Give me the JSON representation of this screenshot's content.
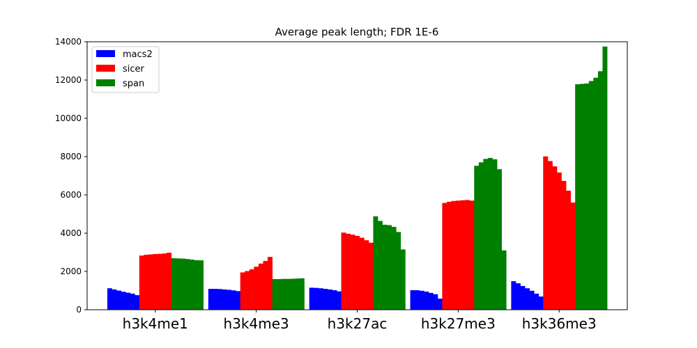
{
  "chart_data": {
    "type": "bar",
    "title": "Average peak length; FDR 1E-6",
    "xlabel": "",
    "ylabel": "",
    "ylim": [
      0,
      14000
    ],
    "yticks": [
      0,
      2000,
      4000,
      6000,
      8000,
      10000,
      12000,
      14000
    ],
    "grid": false,
    "legend_position": "top-left",
    "categories": [
      "h3k4me1",
      "h3k4me3",
      "h3k27ac",
      "h3k27me3",
      "h3k36me3"
    ],
    "series": [
      {
        "name": "macs2",
        "color": "#0000ff",
        "values": [
          [
            1120,
            1060,
            1000,
            940,
            890,
            840,
            760
          ],
          [
            1090,
            1090,
            1080,
            1060,
            1040,
            1010,
            970
          ],
          [
            1150,
            1140,
            1120,
            1090,
            1060,
            1020,
            960
          ],
          [
            1020,
            1020,
            990,
            950,
            880,
            810,
            580
          ],
          [
            1490,
            1380,
            1240,
            1120,
            990,
            840,
            690
          ]
        ]
      },
      {
        "name": "sicer",
        "color": "#ff0000",
        "values": [
          [
            2830,
            2870,
            2890,
            2910,
            2920,
            2940,
            2980
          ],
          [
            1950,
            2020,
            2110,
            2250,
            2410,
            2550,
            2760
          ],
          [
            4030,
            3970,
            3920,
            3860,
            3760,
            3630,
            3500
          ],
          [
            5580,
            5640,
            5680,
            5700,
            5720,
            5730,
            5700
          ],
          [
            8010,
            7770,
            7490,
            7170,
            6730,
            6220,
            5600
          ]
        ]
      },
      {
        "name": "span",
        "color": "#008000",
        "values": [
          [
            2690,
            2680,
            2670,
            2650,
            2620,
            2590,
            2580
          ],
          [
            1600,
            1600,
            1610,
            1610,
            1620,
            1630,
            1640
          ],
          [
            4880,
            4640,
            4440,
            4420,
            4330,
            4060,
            3150
          ],
          [
            7520,
            7700,
            7880,
            7930,
            7860,
            7340,
            3100
          ],
          [
            11780,
            11800,
            11820,
            11950,
            12120,
            12460,
            13750
          ]
        ]
      }
    ]
  }
}
